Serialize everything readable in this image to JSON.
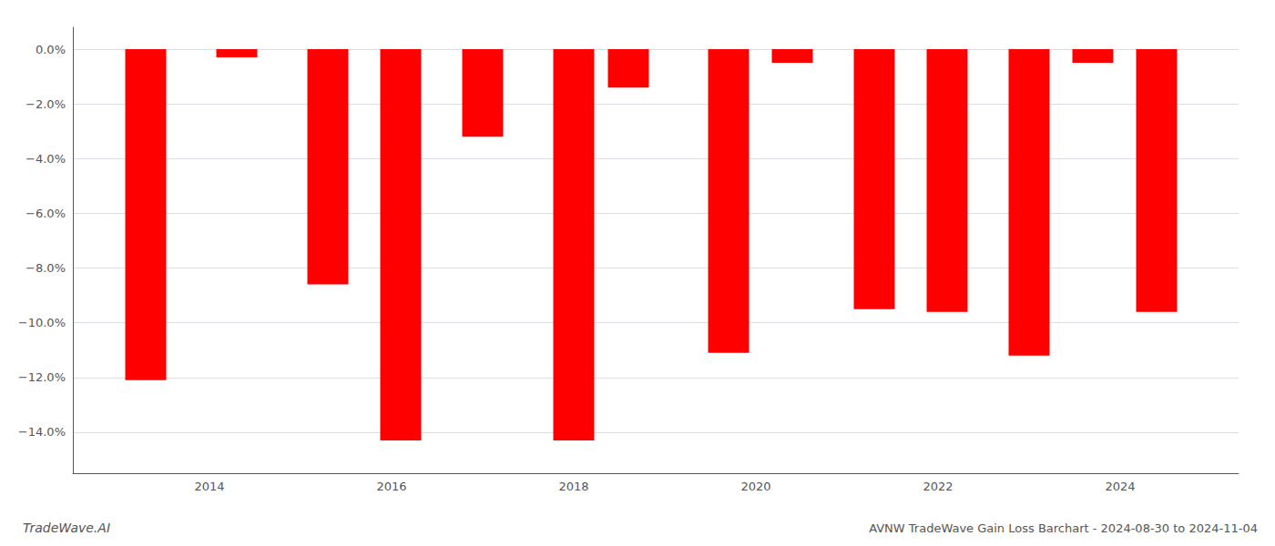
{
  "chart_data": {
    "type": "bar",
    "title": "AVNW TradeWave Gain Loss Barchart - 2024-08-30 to 2024-11-04",
    "annotations": [
      "TradeWave.AI"
    ],
    "x": [
      2013.3,
      2014.3,
      2015.3,
      2016.1,
      2017.0,
      2018.0,
      2018.6,
      2019.7,
      2020.4,
      2021.3,
      2022.1,
      2023.0,
      2023.7,
      2024.4
    ],
    "values": [
      -0.121,
      -0.003,
      -0.086,
      -0.143,
      -0.032,
      -0.143,
      -0.014,
      -0.111,
      -0.005,
      -0.095,
      -0.096,
      -0.112,
      -0.005,
      -0.096
    ],
    "color": "#ff0000",
    "xlim": [
      2012.5,
      2025.3
    ],
    "xticks": [
      2014,
      2016,
      2018,
      2020,
      2022,
      2024
    ],
    "ylim": [
      -0.155,
      0.008
    ],
    "yticks": [
      {
        "value": 0.0,
        "label": "0.0%"
      },
      {
        "value": -0.02,
        "label": "−2.0%"
      },
      {
        "value": -0.04,
        "label": "−4.0%"
      },
      {
        "value": -0.06,
        "label": "−6.0%"
      },
      {
        "value": -0.08,
        "label": "−8.0%"
      },
      {
        "value": -0.1,
        "label": "−10.0%"
      },
      {
        "value": -0.12,
        "label": "−12.0%"
      },
      {
        "value": -0.14,
        "label": "−14.0%"
      }
    ],
    "grid": true
  }
}
